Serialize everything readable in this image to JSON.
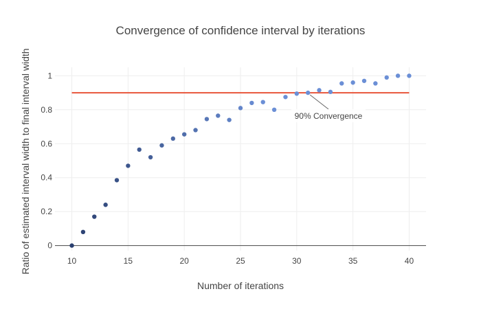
{
  "chart_data": {
    "type": "scatter",
    "title": "Convergence of confidence interval by iterations",
    "xlabel": "Number of iterations",
    "ylabel": "Ratio of estimated interval width to final interval width",
    "xlim": [
      8.5,
      41.5
    ],
    "ylim": [
      -0.03,
      1.05
    ],
    "x_ticks": [
      10,
      15,
      20,
      25,
      30,
      35,
      40
    ],
    "y_ticks": [
      0,
      0.2,
      0.4,
      0.6,
      0.8,
      1
    ],
    "grid": true,
    "x": [
      10,
      11,
      12,
      13,
      14,
      15,
      16,
      17,
      18,
      19,
      20,
      21,
      22,
      23,
      24,
      25,
      26,
      27,
      28,
      29,
      30,
      31,
      32,
      33,
      34,
      35,
      36,
      37,
      38,
      39,
      40
    ],
    "y": [
      0,
      0.08,
      0.17,
      0.24,
      0.385,
      0.47,
      0.565,
      0.52,
      0.59,
      0.63,
      0.655,
      0.68,
      0.745,
      0.765,
      0.74,
      0.81,
      0.84,
      0.845,
      0.8,
      0.875,
      0.895,
      0.9,
      0.915,
      0.905,
      0.955,
      0.96,
      0.97,
      0.955,
      0.99,
      1.0,
      1.0
    ],
    "colors": {
      "point_start": "#2a3f6f",
      "point_end": "#6b8fd6",
      "threshold_line": "#e8543a",
      "grid": "#eeeeee",
      "zero_line": "#444444"
    },
    "threshold": {
      "y": 0.9,
      "x_range": [
        10,
        40
      ]
    },
    "annotation": {
      "text": "90% Convergence",
      "point_x": 31,
      "point_y": 0.9
    }
  }
}
